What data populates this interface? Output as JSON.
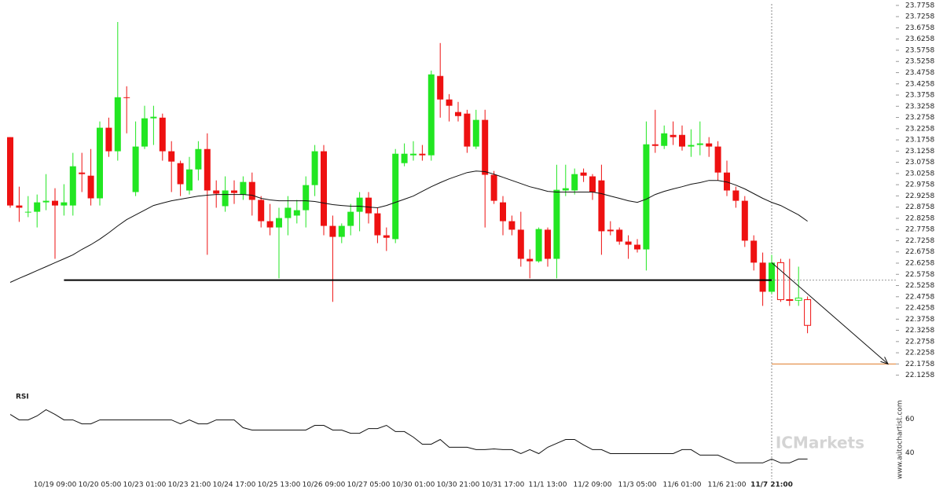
{
  "chart_data": {
    "type": "candlestick",
    "up_color": "#22e622",
    "down_color": "#ee1111",
    "categories": [
      null,
      null,
      null,
      null,
      null,
      "10/19 09:00",
      null,
      null,
      null,
      null,
      "10/20 05:00",
      null,
      null,
      null,
      null,
      "10/23 01:00",
      null,
      null,
      null,
      null,
      "10/23 21:00",
      null,
      null,
      null,
      null,
      "10/24 17:00",
      null,
      null,
      null,
      null,
      "10/25 13:00",
      null,
      null,
      null,
      null,
      "10/26 09:00",
      null,
      null,
      null,
      null,
      "10/27 05:00",
      null,
      null,
      null,
      null,
      "10/30 01:00",
      null,
      null,
      null,
      null,
      "10/30 21:00",
      null,
      null,
      null,
      null,
      "10/31 17:00",
      null,
      null,
      null,
      null,
      "11/1 13:00",
      null,
      null,
      null,
      null,
      "11/2 09:00",
      null,
      null,
      null,
      null,
      "11/3 05:00",
      null,
      null,
      null,
      null,
      "11/6 01:00",
      null,
      null,
      null,
      null,
      "11/6 21:00",
      null,
      null,
      null,
      null,
      "11/7 21:00",
      null,
      null,
      null,
      null
    ],
    "open": [
      23.188,
      22.883,
      22.855,
      22.855,
      22.897,
      22.904,
      22.883,
      22.883,
      23.03,
      23.016,
      22.915,
      23.23,
      23.125,
      23.366,
      22.943,
      23.146,
      23.272,
      23.275,
      23.125,
      23.072,
      22.95,
      23.044,
      23.135,
      22.95,
      22.88,
      22.95,
      22.932,
      22.988,
      22.908,
      22.813,
      22.785,
      22.827,
      22.838,
      22.862,
      22.974,
      23.125,
      22.792,
      22.743,
      22.792,
      22.855,
      22.918,
      22.848,
      22.75,
      22.733,
      23.072,
      23.107,
      23.114,
      23.107,
      23.461,
      23.356,
      23.3,
      23.293,
      23.146,
      23.265,
      23.02,
      22.897,
      22.813,
      22.775,
      22.645,
      22.634,
      22.775,
      22.645,
      22.95,
      22.95,
      23.03,
      23.013,
      22.995,
      22.775,
      22.775,
      22.722,
      22.708,
      22.687,
      23.156,
      23.149,
      23.198,
      23.198,
      23.146,
      23.153,
      23.16,
      23.146,
      23.03,
      22.95,
      22.904,
      22.726,
      22.628,
      22.498,
      22.628,
      22.463,
      22.46,
      22.463
    ],
    "high": [
      23.188,
      22.967,
      22.925,
      22.932,
      23.023,
      22.96,
      22.978,
      23.118,
      23.118,
      23.135,
      23.258,
      23.275,
      23.702,
      23.415,
      23.258,
      23.328,
      23.328,
      23.293,
      23.17,
      23.083,
      23.1,
      23.17,
      23.205,
      22.995,
      23.013,
      22.995,
      23.013,
      23.03,
      22.925,
      22.89,
      22.873,
      22.925,
      22.908,
      23.013,
      23.153,
      23.153,
      22.838,
      22.803,
      22.89,
      22.943,
      22.943,
      22.873,
      22.785,
      23.135,
      23.16,
      23.17,
      23.153,
      23.485,
      23.608,
      23.38,
      23.345,
      23.31,
      23.31,
      23.31,
      23.037,
      22.925,
      22.838,
      22.855,
      22.687,
      22.785,
      22.785,
      23.065,
      23.065,
      23.048,
      23.048,
      23.023,
      23.065,
      22.813,
      22.785,
      22.75,
      22.733,
      23.258,
      23.31,
      23.24,
      23.258,
      23.24,
      23.223,
      23.258,
      23.188,
      23.17,
      23.083,
      22.967,
      22.925,
      22.75,
      22.673,
      22.663,
      22.645,
      22.645,
      22.61,
      22.477
    ],
    "low": [
      22.873,
      22.81,
      22.831,
      22.785,
      22.862,
      22.645,
      22.838,
      22.838,
      22.943,
      22.883,
      22.883,
      23.1,
      23.083,
      23.205,
      22.925,
      23.135,
      23.153,
      23.083,
      22.943,
      22.925,
      22.932,
      22.995,
      22.663,
      22.873,
      22.855,
      22.89,
      22.908,
      22.838,
      22.785,
      22.75,
      22.558,
      22.75,
      22.803,
      22.785,
      22.925,
      22.75,
      22.453,
      22.715,
      22.75,
      22.768,
      22.803,
      22.715,
      22.68,
      22.715,
      23.058,
      23.083,
      23.083,
      23.083,
      23.275,
      23.258,
      23.258,
      23.118,
      23.135,
      22.785,
      22.89,
      22.75,
      22.75,
      22.61,
      22.558,
      22.628,
      22.61,
      22.558,
      22.925,
      22.932,
      22.988,
      22.908,
      22.663,
      22.75,
      22.708,
      22.645,
      22.673,
      22.593,
      23.118,
      23.135,
      23.153,
      23.128,
      23.1,
      23.107,
      23.1,
      22.995,
      22.925,
      22.873,
      22.698,
      22.593,
      22.435,
      22.488,
      22.453,
      22.435,
      22.435,
      22.313
    ],
    "close": [
      22.883,
      22.873,
      22.855,
      22.897,
      22.904,
      22.883,
      22.897,
      23.058,
      23.023,
      22.915,
      23.23,
      23.125,
      23.366,
      23.363,
      23.146,
      23.272,
      23.279,
      23.125,
      23.079,
      22.978,
      23.044,
      23.135,
      22.95,
      22.936,
      22.95,
      22.939,
      22.988,
      22.908,
      22.813,
      22.785,
      22.827,
      22.873,
      22.862,
      22.974,
      23.125,
      22.792,
      22.743,
      22.792,
      22.855,
      22.918,
      22.848,
      22.75,
      22.739,
      23.114,
      23.114,
      23.114,
      23.107,
      23.468,
      23.356,
      23.328,
      23.282,
      23.146,
      23.265,
      23.02,
      22.904,
      22.813,
      22.775,
      22.645,
      22.634,
      22.778,
      22.645,
      22.953,
      22.96,
      23.023,
      23.016,
      22.943,
      22.768,
      22.768,
      22.722,
      22.708,
      22.687,
      23.156,
      23.149,
      23.205,
      23.188,
      23.146,
      23.153,
      23.16,
      23.146,
      23.03,
      22.95,
      22.904,
      22.726,
      22.628,
      22.498,
      22.628,
      22.463,
      22.46,
      22.47,
      22.348
    ],
    "moving_average": {
      "color": "#111111",
      "values": [
        22.54,
        22.558,
        22.575,
        22.593,
        22.61,
        22.628,
        22.645,
        22.663,
        22.687,
        22.708,
        22.733,
        22.761,
        22.792,
        22.82,
        22.841,
        22.862,
        22.883,
        22.894,
        22.904,
        22.911,
        22.918,
        22.925,
        22.929,
        22.932,
        22.932,
        22.932,
        22.932,
        22.929,
        22.915,
        22.908,
        22.904,
        22.904,
        22.904,
        22.904,
        22.901,
        22.894,
        22.887,
        22.883,
        22.88,
        22.88,
        22.876,
        22.873,
        22.883,
        22.897,
        22.911,
        22.925,
        22.946,
        22.967,
        22.985,
        23.002,
        23.016,
        23.03,
        23.037,
        23.034,
        23.023,
        23.009,
        22.995,
        22.981,
        22.967,
        22.957,
        22.946,
        22.943,
        22.943,
        22.943,
        22.943,
        22.943,
        22.936,
        22.925,
        22.915,
        22.904,
        22.897,
        22.911,
        22.932,
        22.946,
        22.957,
        22.967,
        22.978,
        22.985,
        22.995,
        22.995,
        22.988,
        22.974,
        22.957,
        22.936,
        22.915,
        22.897,
        22.883,
        22.862,
        22.841,
        22.813
      ]
    },
    "ylim": [
      22.1,
      23.8
    ],
    "yticks": [
      23.7758,
      23.7258,
      23.6758,
      23.6258,
      23.5758,
      23.5258,
      23.4758,
      23.4258,
      23.3758,
      23.3258,
      23.2758,
      23.2258,
      23.1758,
      23.1258,
      23.0758,
      23.0258,
      22.9758,
      22.9258,
      22.8758,
      22.8258,
      22.7758,
      22.7258,
      22.6758,
      22.6258,
      22.5758,
      22.5258,
      22.4758,
      22.4258,
      22.3758,
      22.3258,
      22.2758,
      22.2258,
      22.1758,
      22.1258
    ],
    "event_index": 85,
    "support_level": 22.55,
    "target_level": 22.1758,
    "projection": {
      "from": 22.628,
      "to": 22.1758
    },
    "rsi": {
      "label": "RSI",
      "color": "#111111",
      "values": [
        62.8,
        59.5,
        59.5,
        61.9,
        65.6,
        62.8,
        59.5,
        59.5,
        57.2,
        57.2,
        59.5,
        59.5,
        59.5,
        59.5,
        59.5,
        59.5,
        59.5,
        59.5,
        59.5,
        57.2,
        59.5,
        57.2,
        57.2,
        59.5,
        59.5,
        59.5,
        54.9,
        53.5,
        53.5,
        53.5,
        53.5,
        53.5,
        53.5,
        53.5,
        56.3,
        56.3,
        53.5,
        53.5,
        51.6,
        51.6,
        54.4,
        54.4,
        56.3,
        52.6,
        52.6,
        49.3,
        45.1,
        45.1,
        47.9,
        43.3,
        43.3,
        43.3,
        41.9,
        41.9,
        42.3,
        41.9,
        41.9,
        39.5,
        41.9,
        39.5,
        43.3,
        45.6,
        47.9,
        47.9,
        44.7,
        41.9,
        41.9,
        39.5,
        39.5,
        39.5,
        39.5,
        39.5,
        39.5,
        39.5,
        39.5,
        41.9,
        41.9,
        38.6,
        38.6,
        38.6,
        36.3,
        34.0,
        34.0,
        34.0,
        34.0,
        36.3,
        34.0,
        34.0,
        36.3,
        36.3
      ],
      "ylim": [
        29,
        78
      ],
      "yticks": [
        60,
        40
      ]
    },
    "watermark": "ICMarkets",
    "credit": "www.autochartist.com"
  }
}
